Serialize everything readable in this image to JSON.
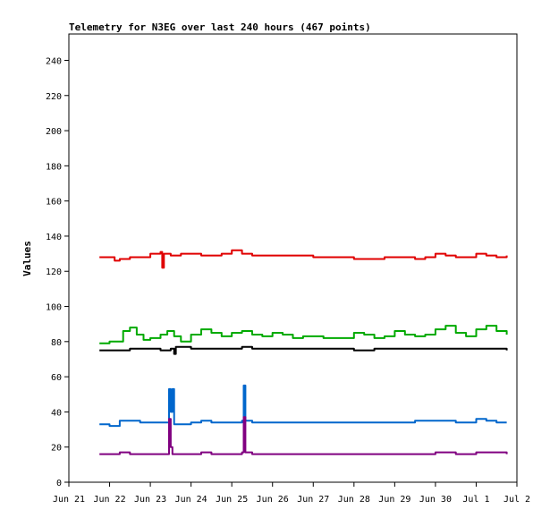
{
  "chart_data": {
    "type": "line",
    "title": "Telemetry for N3EG over last 240 hours (467 points)",
    "xlabel": "",
    "ylabel": "Values",
    "ylim": [
      0,
      255
    ],
    "xlim_days": [
      "Jun 21",
      "Jul 2"
    ],
    "x_ticks": [
      "Jun 21",
      "Jun 22",
      "Jun 23",
      "Jun 24",
      "Jun 25",
      "Jun 26",
      "Jun 27",
      "Jun 28",
      "Jun 29",
      "Jun 30",
      "Jul 1",
      "Jul 2"
    ],
    "y_ticks": [
      0,
      20,
      40,
      60,
      80,
      100,
      120,
      140,
      160,
      180,
      200,
      220,
      240
    ],
    "grid": false,
    "series": [
      {
        "color": "#e00000",
        "points": [
          [
            "Jun 21 18:00",
            128
          ],
          [
            "Jun 22 00:00",
            128
          ],
          [
            "Jun 22 03:00",
            126
          ],
          [
            "Jun 22 06:00",
            127
          ],
          [
            "Jun 22 12:00",
            128
          ],
          [
            "Jun 23 00:00",
            130
          ],
          [
            "Jun 23 06:00",
            131
          ],
          [
            "Jun 23 07:00",
            122
          ],
          [
            "Jun 23 08:00",
            130
          ],
          [
            "Jun 23 12:00",
            129
          ],
          [
            "Jun 23 18:00",
            130
          ],
          [
            "Jun 24 00:00",
            130
          ],
          [
            "Jun 24 06:00",
            129
          ],
          [
            "Jun 24 12:00",
            129
          ],
          [
            "Jun 24 18:00",
            130
          ],
          [
            "Jun 25 00:00",
            132
          ],
          [
            "Jun 25 06:00",
            130
          ],
          [
            "Jun 25 12:00",
            129
          ],
          [
            "Jun 26 00:00",
            129
          ],
          [
            "Jun 26 12:00",
            129
          ],
          [
            "Jun 27 00:00",
            128
          ],
          [
            "Jun 27 12:00",
            128
          ],
          [
            "Jun 28 00:00",
            127
          ],
          [
            "Jun 28 06:00",
            127
          ],
          [
            "Jun 28 12:00",
            127
          ],
          [
            "Jun 28 18:00",
            128
          ],
          [
            "Jun 29 00:00",
            128
          ],
          [
            "Jun 29 12:00",
            127
          ],
          [
            "Jun 29 18:00",
            128
          ],
          [
            "Jun 30 00:00",
            130
          ],
          [
            "Jun 30 06:00",
            129
          ],
          [
            "Jun 30 12:00",
            128
          ],
          [
            "Jun 30 18:00",
            128
          ],
          [
            "Jul 1 00:00",
            130
          ],
          [
            "Jul 1 06:00",
            129
          ],
          [
            "Jul 1 12:00",
            128
          ],
          [
            "Jul 1 18:00",
            129
          ]
        ]
      },
      {
        "color": "#00aa00",
        "points": [
          [
            "Jun 21 18:00",
            79
          ],
          [
            "Jun 22 00:00",
            80
          ],
          [
            "Jun 22 04:00",
            80
          ],
          [
            "Jun 22 08:00",
            86
          ],
          [
            "Jun 22 12:00",
            88
          ],
          [
            "Jun 22 16:00",
            84
          ],
          [
            "Jun 22 20:00",
            81
          ],
          [
            "Jun 23 00:00",
            82
          ],
          [
            "Jun 23 06:00",
            84
          ],
          [
            "Jun 23 10:00",
            86
          ],
          [
            "Jun 23 14:00",
            83
          ],
          [
            "Jun 23 18:00",
            80
          ],
          [
            "Jun 24 00:00",
            84
          ],
          [
            "Jun 24 06:00",
            87
          ],
          [
            "Jun 24 12:00",
            85
          ],
          [
            "Jun 24 18:00",
            83
          ],
          [
            "Jun 25 00:00",
            85
          ],
          [
            "Jun 25 06:00",
            86
          ],
          [
            "Jun 25 12:00",
            84
          ],
          [
            "Jun 25 18:00",
            83
          ],
          [
            "Jun 26 00:00",
            85
          ],
          [
            "Jun 26 06:00",
            84
          ],
          [
            "Jun 26 12:00",
            82
          ],
          [
            "Jun 26 18:00",
            83
          ],
          [
            "Jun 27 00:00",
            83
          ],
          [
            "Jun 27 06:00",
            82
          ],
          [
            "Jun 27 12:00",
            82
          ],
          [
            "Jun 27 18:00",
            82
          ],
          [
            "Jun 28 00:00",
            85
          ],
          [
            "Jun 28 06:00",
            84
          ],
          [
            "Jun 28 12:00",
            82
          ],
          [
            "Jun 28 18:00",
            83
          ],
          [
            "Jun 29 00:00",
            86
          ],
          [
            "Jun 29 06:00",
            84
          ],
          [
            "Jun 29 12:00",
            83
          ],
          [
            "Jun 29 18:00",
            84
          ],
          [
            "Jun 30 00:00",
            87
          ],
          [
            "Jun 30 06:00",
            89
          ],
          [
            "Jun 30 12:00",
            85
          ],
          [
            "Jun 30 18:00",
            83
          ],
          [
            "Jul 1 00:00",
            87
          ],
          [
            "Jul 1 06:00",
            89
          ],
          [
            "Jul 1 12:00",
            86
          ],
          [
            "Jul 1 18:00",
            84
          ]
        ]
      },
      {
        "color": "#000000",
        "points": [
          [
            "Jun 21 18:00",
            75
          ],
          [
            "Jun 22 00:00",
            75
          ],
          [
            "Jun 22 12:00",
            76
          ],
          [
            "Jun 23 00:00",
            76
          ],
          [
            "Jun 23 06:00",
            75
          ],
          [
            "Jun 23 12:00",
            76
          ],
          [
            "Jun 23 14:00",
            73
          ],
          [
            "Jun 23 15:00",
            77
          ],
          [
            "Jun 24 00:00",
            76
          ],
          [
            "Jun 24 12:00",
            76
          ],
          [
            "Jun 25 00:00",
            76
          ],
          [
            "Jun 25 06:00",
            77
          ],
          [
            "Jun 25 12:00",
            76
          ],
          [
            "Jun 26 00:00",
            76
          ],
          [
            "Jun 27 00:00",
            76
          ],
          [
            "Jun 28 00:00",
            75
          ],
          [
            "Jun 28 12:00",
            76
          ],
          [
            "Jun 29 00:00",
            76
          ],
          [
            "Jun 30 00:00",
            76
          ],
          [
            "Jul 1 00:00",
            76
          ],
          [
            "Jul 1 18:00",
            75
          ]
        ]
      },
      {
        "color": "#0066cc",
        "points": [
          [
            "Jun 21 18:00",
            33
          ],
          [
            "Jun 22 00:00",
            32
          ],
          [
            "Jun 22 06:00",
            35
          ],
          [
            "Jun 22 12:00",
            35
          ],
          [
            "Jun 22 18:00",
            34
          ],
          [
            "Jun 23 00:00",
            34
          ],
          [
            "Jun 23 06:00",
            34
          ],
          [
            "Jun 23 10:00",
            34
          ],
          [
            "Jun 23 11:00",
            53
          ],
          [
            "Jun 23 12:00",
            40
          ],
          [
            "Jun 23 13:00",
            53
          ],
          [
            "Jun 23 14:00",
            33
          ],
          [
            "Jun 24 00:00",
            34
          ],
          [
            "Jun 24 06:00",
            35
          ],
          [
            "Jun 24 12:00",
            34
          ],
          [
            "Jun 25 00:00",
            34
          ],
          [
            "Jun 25 06:00",
            35
          ],
          [
            "Jun 25 07:00",
            55
          ],
          [
            "Jun 25 08:00",
            35
          ],
          [
            "Jun 25 12:00",
            34
          ],
          [
            "Jun 26 00:00",
            34
          ],
          [
            "Jun 26 12:00",
            34
          ],
          [
            "Jun 27 00:00",
            34
          ],
          [
            "Jun 27 12:00",
            34
          ],
          [
            "Jun 28 00:00",
            34
          ],
          [
            "Jun 28 12:00",
            34
          ],
          [
            "Jun 29 00:00",
            34
          ],
          [
            "Jun 29 12:00",
            35
          ],
          [
            "Jun 30 00:00",
            35
          ],
          [
            "Jun 30 12:00",
            34
          ],
          [
            "Jul 1 00:00",
            36
          ],
          [
            "Jul 1 06:00",
            35
          ],
          [
            "Jul 1 12:00",
            34
          ],
          [
            "Jul 1 18:00",
            34
          ]
        ]
      },
      {
        "color": "#800080",
        "points": [
          [
            "Jun 21 18:00",
            16
          ],
          [
            "Jun 22 00:00",
            16
          ],
          [
            "Jun 22 06:00",
            17
          ],
          [
            "Jun 22 12:00",
            16
          ],
          [
            "Jun 23 00:00",
            16
          ],
          [
            "Jun 23 10:00",
            16
          ],
          [
            "Jun 23 11:00",
            36
          ],
          [
            "Jun 23 12:00",
            20
          ],
          [
            "Jun 23 13:00",
            16
          ],
          [
            "Jun 24 00:00",
            16
          ],
          [
            "Jun 24 06:00",
            17
          ],
          [
            "Jun 24 12:00",
            16
          ],
          [
            "Jun 25 00:00",
            16
          ],
          [
            "Jun 25 06:00",
            17
          ],
          [
            "Jun 25 07:00",
            37
          ],
          [
            "Jun 25 08:00",
            17
          ],
          [
            "Jun 25 12:00",
            16
          ],
          [
            "Jun 26 00:00",
            16
          ],
          [
            "Jun 27 00:00",
            16
          ],
          [
            "Jun 28 00:00",
            16
          ],
          [
            "Jun 29 00:00",
            16
          ],
          [
            "Jun 29 12:00",
            16
          ],
          [
            "Jun 30 00:00",
            17
          ],
          [
            "Jun 30 12:00",
            16
          ],
          [
            "Jul 1 00:00",
            17
          ],
          [
            "Jul 1 12:00",
            17
          ],
          [
            "Jul 1 18:00",
            16
          ]
        ]
      }
    ]
  }
}
